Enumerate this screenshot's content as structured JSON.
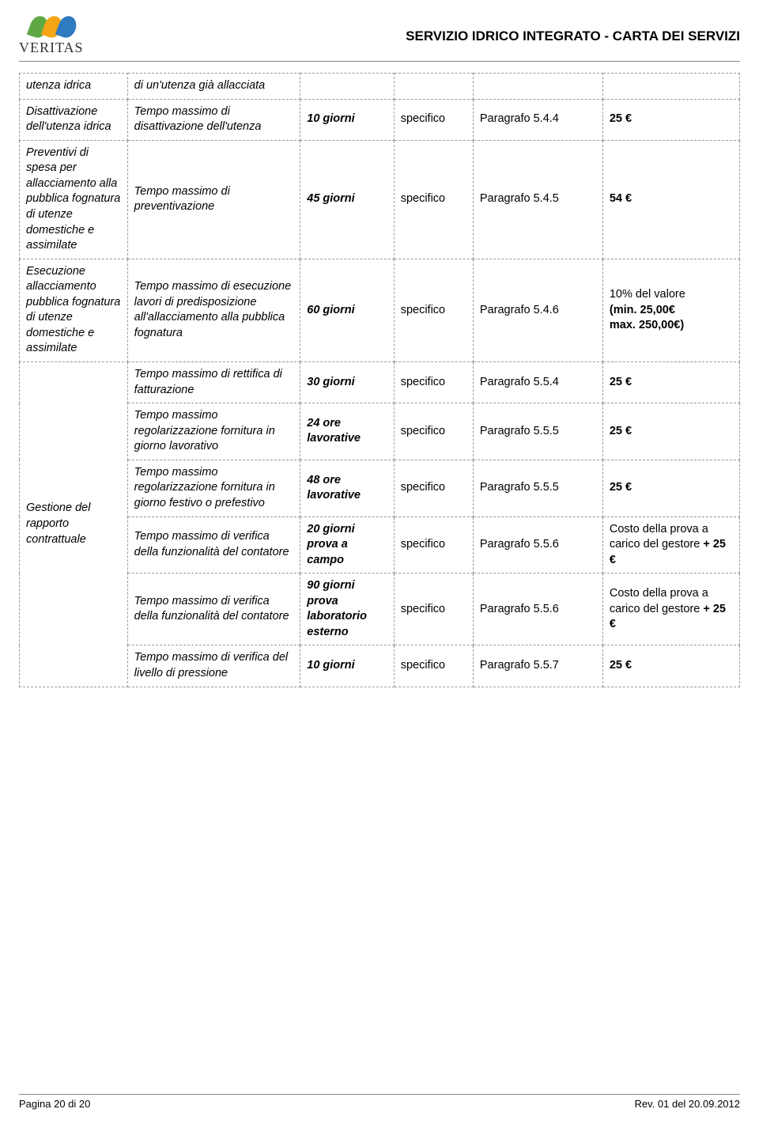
{
  "header": {
    "logo_text": "VERITAS",
    "doc_title": "SERVIZIO IDRICO INTEGRATO - CARTA DEI SERVIZI",
    "leaf_colors": [
      "#5fa843",
      "#f4a614",
      "#2e7bbf"
    ]
  },
  "table": {
    "col_widths_pct": [
      15,
      24,
      13,
      11,
      18,
      19
    ],
    "border_color": "#999999",
    "border_style": "dashed",
    "rows": [
      {
        "c1": "utenza idrica",
        "c2": "di un'utenza già allacciata",
        "c3": "",
        "c4": "",
        "c5": "",
        "c6": "",
        "c1_rowspan": 1
      },
      {
        "c1": "Disattivazione dell'utenza idrica",
        "c2": "Tempo massimo di disattivazione dell'utenza",
        "c3": "10 giorni",
        "c4": "specifico",
        "c5": "Paragrafo 5.4.4",
        "c6": "25 €"
      },
      {
        "c1": "Preventivi di spesa per allacciamento alla pubblica fognatura di utenze domestiche e assimilate",
        "c2": "Tempo massimo di preventivazione",
        "c3": "45 giorni",
        "c4": "specifico",
        "c5": "Paragrafo 5.4.5",
        "c6": "54 €"
      },
      {
        "c1": "Esecuzione allacciamento pubblica fognatura di utenze domestiche e assimilate",
        "c2": "Tempo massimo di esecuzione lavori di predisposizione all'allacciamento alla pubblica fognatura",
        "c3": "60 giorni",
        "c4": "specifico",
        "c5": "Paragrafo 5.4.6",
        "c6": "10% del valore\n(min. 25,00€\nmax. 250,00€)",
        "c6_html": "<span style='font-weight:normal'>10% del valore</span><br>(<b>min. 25,00€<br>max. 250,00€</b>)"
      },
      {
        "c1": "Gestione del rapporto contrattuale",
        "c1_rowspan": 7,
        "c2": "Tempo massimo di rettifica di fatturazione",
        "c3": "30 giorni",
        "c4": "specifico",
        "c5": "Paragrafo 5.5.4",
        "c6": "25 €"
      },
      {
        "c2": "Tempo massimo regolarizzazione fornitura in giorno lavorativo",
        "c3": "24 ore lavorative",
        "c4": "specifico",
        "c5": "Paragrafo 5.5.5",
        "c6": "25 €"
      },
      {
        "c2": "Tempo massimo regolarizzazione fornitura in giorno festivo o prefestivo",
        "c3": "48 ore lavorative",
        "c4": "specifico",
        "c5": "Paragrafo 5.5.5",
        "c6": "25 €"
      },
      {
        "c2": "Tempo massimo di verifica della funzionalità del contatore",
        "c3": "20 giorni prova a campo",
        "c4": "specifico",
        "c5": "Paragrafo 5.5.6",
        "c6": "Costo della prova a carico del gestore + 25 €",
        "c6_html": "<span style='font-weight:normal'>Costo della prova a carico del gestore </span><b>+ 25 €</b>"
      },
      {
        "c2": "Tempo massimo di verifica della funzionalità del contatore",
        "c3": "90 giorni prova laboratorio esterno",
        "c4": "specifico",
        "c5": "Paragrafo 5.5.6",
        "c6": "Costo della prova a carico del gestore + 25 €",
        "c6_html": "<span style='font-weight:normal'>Costo della prova a carico del gestore </span><b>+ 25 €</b>"
      },
      {
        "c2": "Tempo massimo di verifica del livello di pressione",
        "c3": "10 giorni",
        "c4": "specifico",
        "c5": "Paragrafo 5.5.7",
        "c6": "25 €"
      }
    ]
  },
  "footer": {
    "left": "Pagina 20 di 20",
    "right": "Rev. 01 del 20.09.2012"
  }
}
